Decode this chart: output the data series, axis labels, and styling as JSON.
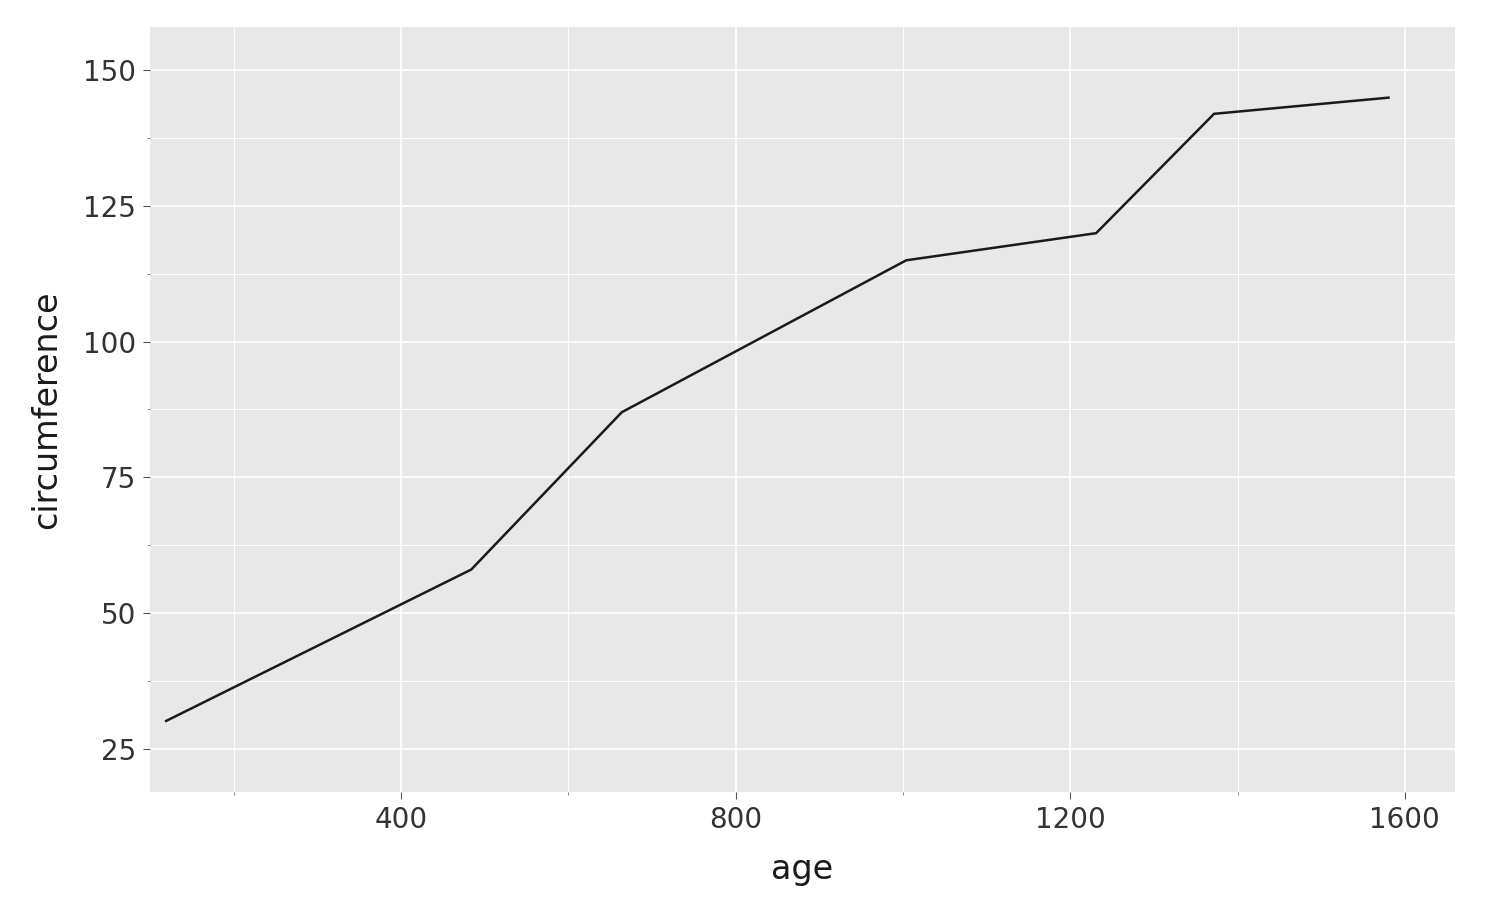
{
  "x": [
    118,
    484,
    664,
    1004,
    1231,
    1372,
    1582
  ],
  "y": [
    30.0,
    58.0,
    87.0,
    115.0,
    120.0,
    142.0,
    145.0
  ],
  "line_color": "#1a1a1a",
  "line_width": 1.8,
  "panel_bg": "#e8e8e8",
  "grid_major_color": "#ffffff",
  "grid_minor_color": "#ffffff",
  "xlabel": "age",
  "ylabel": "circumference",
  "xlabel_fontsize": 24,
  "ylabel_fontsize": 24,
  "tick_fontsize": 20,
  "xlim": [
    100,
    1660
  ],
  "ylim": [
    17,
    158
  ],
  "xticks": [
    400,
    800,
    1200,
    1600
  ],
  "yticks": [
    25,
    50,
    75,
    100,
    125,
    150
  ]
}
